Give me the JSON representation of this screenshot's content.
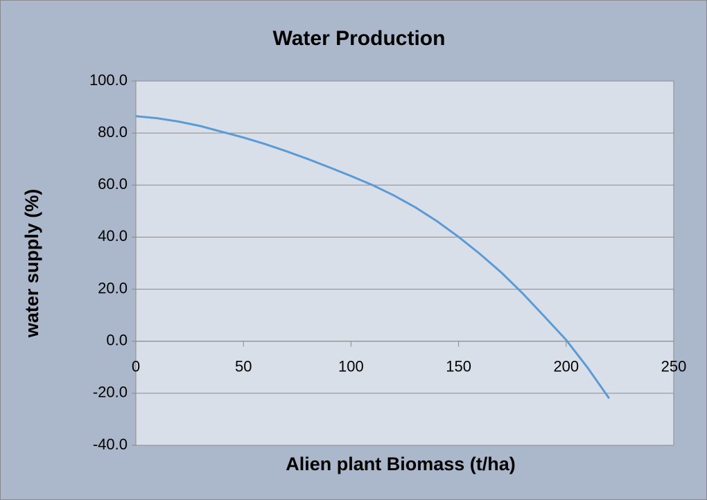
{
  "chart_data": {
    "type": "line",
    "title": "Water Production",
    "x_label": "Alien plant Biomass (t/ha)",
    "y_label": "water supply (%)",
    "x": [
      0,
      10,
      20,
      30,
      40,
      50,
      60,
      70,
      80,
      90,
      100,
      110,
      120,
      130,
      140,
      150,
      160,
      170,
      180,
      190,
      200,
      210,
      220
    ],
    "series": [
      {
        "name": "water supply",
        "color": "#5b9bd5",
        "values": [
          86.5,
          85.7,
          84.4,
          82.7,
          80.5,
          78.3,
          75.8,
          73.0,
          70.0,
          66.8,
          63.5,
          60.0,
          56.0,
          51.4,
          46.1,
          40.1,
          33.5,
          26.3,
          18.2,
          9.4,
          0.5,
          -10.2,
          -22.0
        ]
      }
    ],
    "xlim": [
      0,
      250
    ],
    "xticks": [
      0,
      50,
      100,
      150,
      200,
      250
    ],
    "ylim": [
      -40,
      100
    ],
    "yticks": [
      {
        "value": -40,
        "label": "-40.0"
      },
      {
        "value": -20,
        "label": "-20.0"
      },
      {
        "value": 0,
        "label": "0.0"
      },
      {
        "value": 20,
        "label": "20.0"
      },
      {
        "value": 40,
        "label": "40.0"
      },
      {
        "value": 60,
        "label": "60.0"
      },
      {
        "value": 80,
        "label": "80.0"
      },
      {
        "value": 100,
        "label": "100.0"
      }
    ],
    "grid": true
  }
}
